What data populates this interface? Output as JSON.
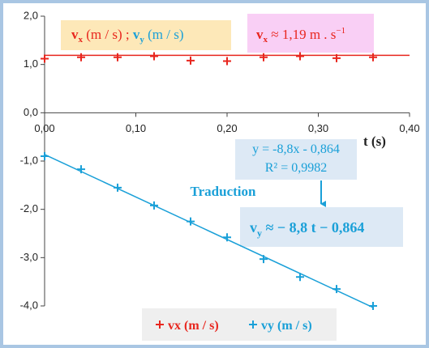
{
  "chart_data": {
    "type": "scatter",
    "x_label": "t (s)",
    "x": [
      0,
      0.04,
      0.08,
      0.12,
      0.16,
      0.2,
      0.24,
      0.28,
      0.32,
      0.36
    ],
    "series": [
      {
        "name": "vx (m / s)",
        "color": "#e8261e",
        "values": [
          1.12,
          1.15,
          1.15,
          1.17,
          1.08,
          1.07,
          1.15,
          1.17,
          1.13,
          1.15
        ],
        "trendline": {
          "slope": 0,
          "intercept": 1.19,
          "x_range": [
            0,
            0.4
          ]
        }
      },
      {
        "name": "vy (m / s)",
        "color": "#1aa0d8",
        "values": [
          -0.9,
          -1.17,
          -1.55,
          -1.92,
          -2.25,
          -2.58,
          -3.03,
          -3.4,
          -3.65,
          -4.0
        ],
        "trendline": {
          "slope": -8.8,
          "intercept": -0.864,
          "x_range": [
            0,
            0.36
          ]
        }
      }
    ],
    "xlim": [
      0,
      0.4
    ],
    "xticks": [
      {
        "value": 0,
        "label": "0,00"
      },
      {
        "value": 0.1,
        "label": "0,10"
      },
      {
        "value": 0.2,
        "label": "0,20"
      },
      {
        "value": 0.3,
        "label": "0,30"
      },
      {
        "value": 0.4,
        "label": "0,40"
      }
    ],
    "ylim": [
      -4,
      2
    ],
    "yticks": [
      {
        "value": -4,
        "label": "-4,0"
      },
      {
        "value": -3,
        "label": "-3,0"
      },
      {
        "value": -2,
        "label": "-2,0"
      },
      {
        "value": -1,
        "label": "-1,0"
      },
      {
        "value": 0,
        "label": "0,0"
      },
      {
        "value": 1,
        "label": "1,0"
      },
      {
        "value": 2,
        "label": "2,0"
      }
    ],
    "annotations": {
      "units": [
        "v",
        "x",
        " (m / s) ; ",
        "v",
        "y",
        " (m / s)"
      ],
      "vx_result": [
        "v",
        "x",
        " ≈ 1,19 m . s",
        "−1"
      ],
      "equation": [
        "y = -8,8x - 0,864",
        "R² = 0,9982"
      ],
      "translation": "Traduction",
      "vy_result": [
        "v",
        "y",
        " ≈ − 8,8 t − 0,864"
      ]
    }
  }
}
